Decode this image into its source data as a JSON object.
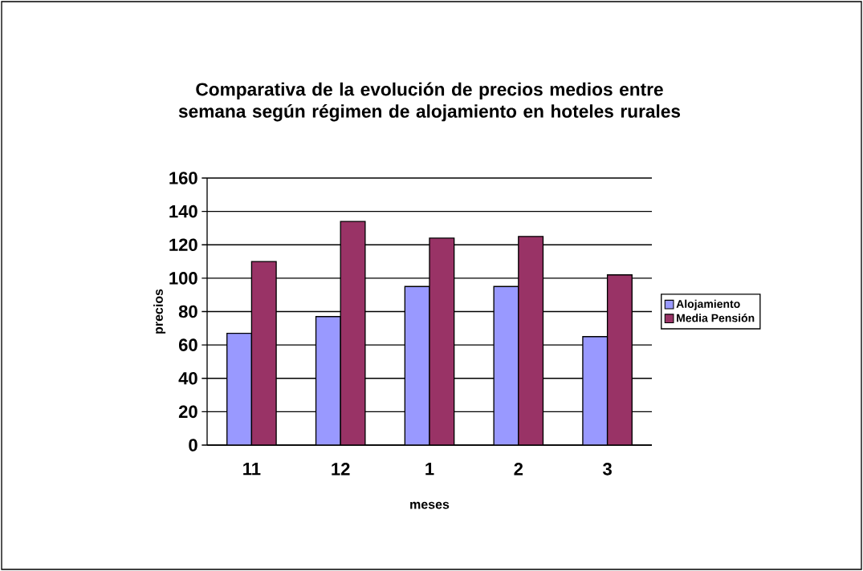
{
  "chart_data": {
    "type": "bar",
    "title": "Comparativa de la evolución de precios medios entre semana según régimen de alojamiento en hoteles rurales",
    "xlabel": "meses",
    "ylabel": "precios",
    "categories": [
      "11",
      "12",
      "1",
      "2",
      "3"
    ],
    "series": [
      {
        "name": "Alojamiento",
        "color": "#9999ff",
        "values": [
          67,
          77,
          95,
          95,
          65
        ]
      },
      {
        "name": "Media Pensión",
        "color": "#993366",
        "values": [
          110,
          134,
          124,
          125,
          102
        ]
      }
    ],
    "ylim": [
      0,
      160
    ],
    "yticks": [
      0,
      20,
      40,
      60,
      80,
      100,
      120,
      140,
      160
    ],
    "grid": "y",
    "legend": "right"
  }
}
